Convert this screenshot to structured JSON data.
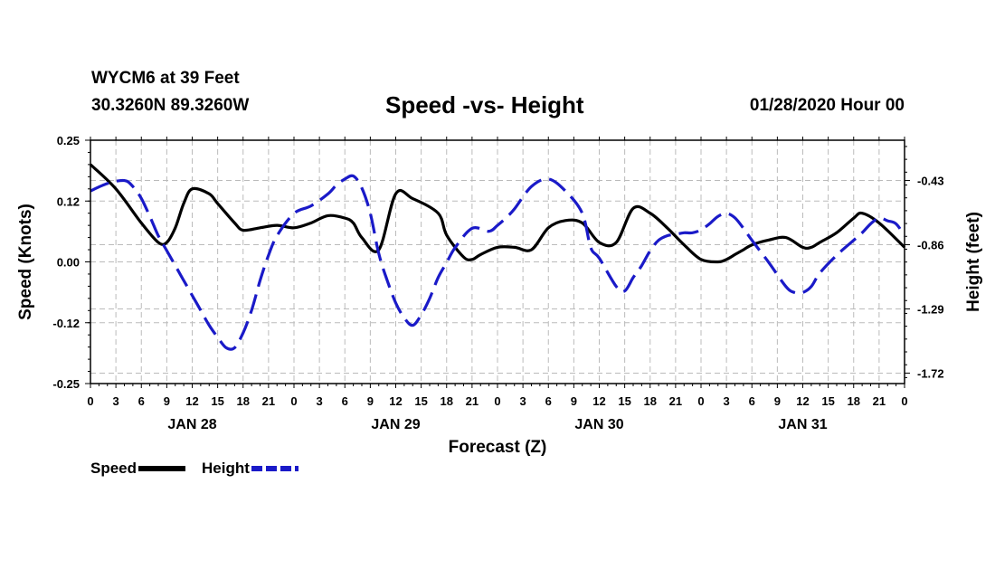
{
  "header": {
    "station": "WYCM6 at 39 Feet",
    "coords": "30.3260N 89.3260W",
    "title": "Speed -vs- Height",
    "timestamp": "01/28/2020 Hour 00"
  },
  "legend": {
    "speed_label": "Speed",
    "height_label": "Height"
  },
  "colors": {
    "speed": "#000000",
    "height": "#1a1ac8",
    "grid": "#bbbbbb"
  },
  "chart_data": {
    "type": "line",
    "title": "Speed -vs- Height",
    "xlabel": "Forecast (Z)",
    "ylabel": "Speed (Knots)",
    "y2label": "Height (feet)",
    "xlim": [
      0,
      96
    ],
    "ylim": [
      -0.25,
      0.25
    ],
    "y2lim": [
      -1.79,
      -0.16
    ],
    "grid": true,
    "legend_position": "bottom-left",
    "x_tick_labels": [
      "0",
      "3",
      "6",
      "9",
      "12",
      "15",
      "18",
      "21",
      "0",
      "3",
      "6",
      "9",
      "12",
      "15",
      "18",
      "21",
      "0",
      "3",
      "6",
      "9",
      "12",
      "15",
      "18",
      "21",
      "0",
      "3",
      "6",
      "9",
      "12",
      "15",
      "18",
      "21",
      "0"
    ],
    "y_ticks": [
      "0.25",
      "0.12",
      "0.00",
      "-0.12",
      "-0.25"
    ],
    "y_tick_values": [
      0.25,
      0.125,
      0.0,
      -0.125,
      -0.25
    ],
    "y2_ticks": [
      "-0.43",
      "-0.86",
      "-1.29",
      "-1.72"
    ],
    "y2_tick_values": [
      -0.43,
      -0.86,
      -1.29,
      -1.72
    ],
    "day_labels": [
      {
        "label": "JAN 28",
        "hour": 12
      },
      {
        "label": "JAN 29",
        "hour": 36
      },
      {
        "label": "JAN 30",
        "hour": 60
      },
      {
        "label": "JAN 31",
        "hour": 84
      }
    ],
    "series": [
      {
        "name": "Speed",
        "axis": "left",
        "style": "solid",
        "x": [
          0,
          3,
          6,
          8,
          9,
          10,
          11,
          12,
          14,
          15,
          17,
          18,
          20,
          22,
          24,
          26,
          28,
          30,
          31,
          32,
          34,
          36,
          38,
          41,
          42,
          44,
          45,
          46,
          48,
          50,
          52,
          54,
          56,
          58,
          60,
          62,
          64,
          66,
          68,
          70,
          72,
          74,
          75,
          76,
          77,
          78,
          80,
          82,
          84,
          85,
          86,
          88,
          90,
          91,
          93,
          96
        ],
        "values": [
          0.2,
          0.15,
          0.08,
          0.04,
          0.04,
          0.07,
          0.12,
          0.15,
          0.14,
          0.12,
          0.08,
          0.065,
          0.07,
          0.075,
          0.07,
          0.08,
          0.095,
          0.09,
          0.08,
          0.05,
          0.025,
          0.14,
          0.13,
          0.1,
          0.055,
          0.01,
          0.005,
          0.015,
          0.03,
          0.03,
          0.025,
          0.07,
          0.085,
          0.08,
          0.04,
          0.04,
          0.11,
          0.1,
          0.07,
          0.035,
          0.005,
          0.0,
          0.005,
          0.015,
          0.025,
          0.035,
          0.045,
          0.05,
          0.03,
          0.03,
          0.04,
          0.06,
          0.09,
          0.1,
          0.08,
          0.03
        ]
      },
      {
        "name": "Height",
        "axis": "right",
        "style": "dashed",
        "x": [
          0,
          2,
          4,
          5,
          6,
          7,
          8,
          9,
          10,
          11,
          12,
          13,
          14,
          15,
          16,
          17,
          18,
          19,
          20,
          21,
          22,
          24,
          26,
          28,
          29,
          30,
          31,
          32,
          33,
          34,
          35,
          36,
          37,
          38,
          39,
          40,
          41,
          42,
          43,
          45,
          47,
          48,
          49,
          50,
          52,
          54,
          56,
          58,
          59,
          60,
          62,
          63,
          64,
          65,
          66,
          67,
          68,
          69,
          70,
          71,
          72,
          73,
          74,
          75,
          76,
          77,
          78,
          80,
          82,
          83,
          84,
          85,
          86,
          88,
          90,
          91,
          92,
          93,
          94,
          95,
          96
        ],
        "values": [
          -0.5,
          -0.45,
          -0.43,
          -0.47,
          -0.55,
          -0.67,
          -0.8,
          -0.9,
          -1.0,
          -1.1,
          -1.2,
          -1.3,
          -1.4,
          -1.48,
          -1.55,
          -1.55,
          -1.45,
          -1.3,
          -1.1,
          -0.93,
          -0.8,
          -0.65,
          -0.6,
          -0.52,
          -0.46,
          -0.42,
          -0.4,
          -0.48,
          -0.65,
          -0.92,
          -1.1,
          -1.25,
          -1.35,
          -1.4,
          -1.33,
          -1.22,
          -1.08,
          -0.98,
          -0.88,
          -0.75,
          -0.77,
          -0.73,
          -0.68,
          -0.62,
          -0.47,
          -0.42,
          -0.5,
          -0.65,
          -0.88,
          -0.95,
          -1.14,
          -1.17,
          -1.08,
          -1.0,
          -0.9,
          -0.83,
          -0.8,
          -0.79,
          -0.78,
          -0.78,
          -0.76,
          -0.72,
          -0.67,
          -0.65,
          -0.68,
          -0.75,
          -0.83,
          -0.98,
          -1.14,
          -1.18,
          -1.18,
          -1.14,
          -1.05,
          -0.93,
          -0.83,
          -0.78,
          -0.72,
          -0.68,
          -0.7,
          -0.72,
          -0.8
        ]
      }
    ]
  }
}
